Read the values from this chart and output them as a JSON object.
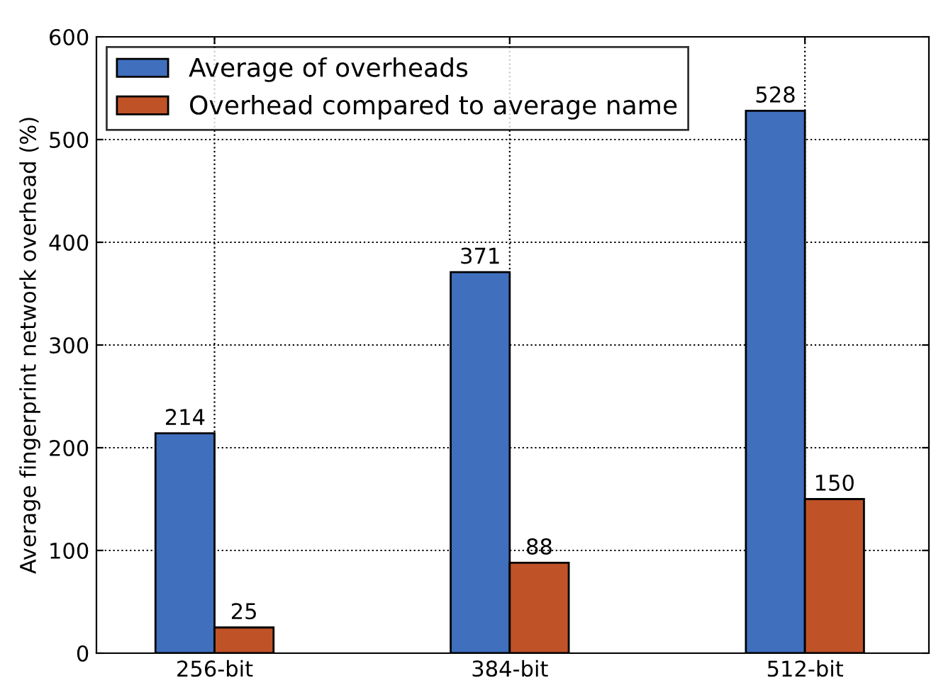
{
  "chart_data": {
    "type": "bar",
    "categories": [
      "256-bit",
      "384-bit",
      "512-bit"
    ],
    "series": [
      {
        "name": "Average of overheads",
        "color": "#3f6fbd",
        "values": [
          214,
          371,
          528
        ]
      },
      {
        "name": "Overhead compared to average name",
        "color": "#c05228",
        "values": [
          25,
          88,
          150
        ]
      }
    ],
    "ylabel": "Average fingerprint network overhead (%)",
    "ylim": [
      0,
      600
    ],
    "yticks": [
      0,
      100,
      200,
      300,
      400,
      500,
      600
    ],
    "grid": true,
    "legend": "top left",
    "data_labels": true
  }
}
